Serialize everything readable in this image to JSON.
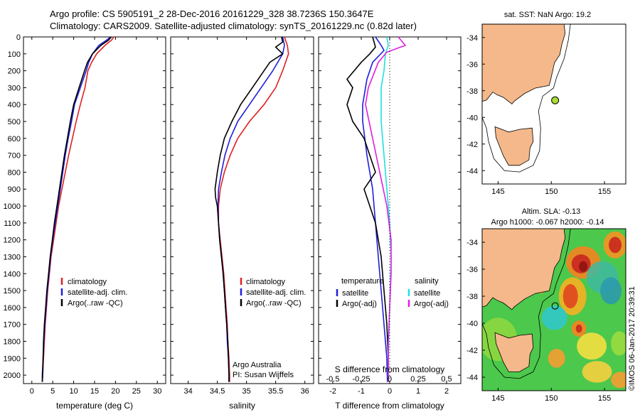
{
  "header": {
    "title1": "Argo profile: CS 5905191_2 28-Dec-2016 20161229_328 38.7236S 150.3647E",
    "title2": "Climatology: CARS2009. Satellite-adjusted climatology: synTS_20161229.nc (0.82d later)"
  },
  "depth_ticks": [
    "0",
    "100",
    "200",
    "300",
    "400",
    "500",
    "600",
    "700",
    "800",
    "900",
    "1000",
    "1100",
    "1200",
    "1300",
    "1400",
    "1500",
    "1600",
    "1700",
    "1800",
    "1900",
    "2000"
  ],
  "colors": {
    "climatology": "#e02020",
    "satellite": "#1f1fdc",
    "argo": "#000000",
    "sat_sal": "#20e0e0",
    "argo_sal": "#e020e0",
    "land": "#f4b88a"
  },
  "chart_data": [
    {
      "type": "line",
      "name": "temperature",
      "xlabel": "temperature (deg C)",
      "xlim": [
        -2,
        32
      ],
      "xticks": [
        "0",
        "5",
        "10",
        "15",
        "20",
        "25",
        "30"
      ],
      "ylim": [
        2050,
        0
      ],
      "legend": [
        "climatology",
        "satellite-adj. clim.",
        "Argo(..raw -QC)"
      ],
      "series": [
        {
          "name": "climatology",
          "color": "#e02020",
          "points": [
            [
              19.6,
              0
            ],
            [
              19.0,
              20
            ],
            [
              17.5,
              50
            ],
            [
              15.5,
              100
            ],
            [
              14.3,
              150
            ],
            [
              13.4,
              200
            ],
            [
              12.7,
              300
            ],
            [
              11.6,
              400
            ],
            [
              10.6,
              500
            ],
            [
              9.7,
              600
            ],
            [
              8.8,
              700
            ],
            [
              8.0,
              800
            ],
            [
              7.2,
              900
            ],
            [
              6.4,
              1000
            ],
            [
              5.8,
              1100
            ],
            [
              5.2,
              1200
            ],
            [
              4.6,
              1300
            ],
            [
              4.2,
              1400
            ],
            [
              3.8,
              1500
            ],
            [
              3.5,
              1600
            ],
            [
              3.2,
              1700
            ],
            [
              3.0,
              1800
            ],
            [
              2.8,
              1900
            ],
            [
              2.6,
              2000
            ],
            [
              2.5,
              2040
            ]
          ]
        },
        {
          "name": "satellite-adj. clim.",
          "color": "#1f1fdc",
          "points": [
            [
              18.8,
              0
            ],
            [
              17.8,
              20
            ],
            [
              16.0,
              50
            ],
            [
              14.5,
              100
            ],
            [
              13.6,
              150
            ],
            [
              13.0,
              200
            ],
            [
              11.6,
              300
            ],
            [
              10.2,
              400
            ],
            [
              9.5,
              500
            ],
            [
              8.7,
              600
            ],
            [
              8.0,
              700
            ],
            [
              7.4,
              800
            ],
            [
              6.8,
              900
            ],
            [
              6.2,
              1000
            ],
            [
              5.6,
              1100
            ],
            [
              5.0,
              1200
            ],
            [
              4.5,
              1300
            ],
            [
              4.1,
              1400
            ],
            [
              3.7,
              1500
            ],
            [
              3.4,
              1600
            ],
            [
              3.1,
              1700
            ],
            [
              2.9,
              1800
            ],
            [
              2.7,
              1900
            ],
            [
              2.6,
              2000
            ],
            [
              2.5,
              2040
            ]
          ]
        },
        {
          "name": "Argo(..raw -QC)",
          "color": "#000000",
          "points": [
            [
              19.0,
              0
            ],
            [
              18.3,
              20
            ],
            [
              16.5,
              50
            ],
            [
              14.5,
              100
            ],
            [
              13.3,
              150
            ],
            [
              12.6,
              200
            ],
            [
              11.3,
              300
            ],
            [
              10.0,
              400
            ],
            [
              9.2,
              500
            ],
            [
              8.5,
              600
            ],
            [
              7.8,
              700
            ],
            [
              7.2,
              800
            ],
            [
              6.6,
              900
            ],
            [
              6.0,
              1000
            ],
            [
              5.4,
              1100
            ],
            [
              4.9,
              1200
            ],
            [
              4.4,
              1300
            ],
            [
              4.0,
              1400
            ],
            [
              3.6,
              1500
            ],
            [
              3.3,
              1600
            ],
            [
              3.0,
              1700
            ],
            [
              2.8,
              1800
            ],
            [
              2.7,
              1900
            ],
            [
              2.5,
              2000
            ],
            [
              2.5,
              2040
            ]
          ]
        }
      ]
    },
    {
      "type": "line",
      "name": "salinity",
      "xlabel": "salinity",
      "xlim": [
        33.7,
        36.15
      ],
      "xticks": [
        "34",
        "34.5",
        "35",
        "35.5",
        "36"
      ],
      "ylim": [
        2050,
        0
      ],
      "legend": [
        "climatology",
        "satellite-adj. clim.",
        "Argo(..raw -QC)"
      ],
      "annotation": [
        "Argo Australia",
        "PI: Susan Wijffels"
      ],
      "series": [
        {
          "name": "climatology",
          "color": "#e02020",
          "points": [
            [
              35.65,
              0
            ],
            [
              35.7,
              50
            ],
            [
              35.72,
              100
            ],
            [
              35.62,
              200
            ],
            [
              35.5,
              300
            ],
            [
              35.3,
              400
            ],
            [
              35.05,
              500
            ],
            [
              34.85,
              600
            ],
            [
              34.72,
              700
            ],
            [
              34.62,
              800
            ],
            [
              34.55,
              900
            ],
            [
              34.52,
              1000
            ],
            [
              34.52,
              1100
            ],
            [
              34.55,
              1200
            ],
            [
              34.58,
              1300
            ],
            [
              34.61,
              1400
            ],
            [
              34.63,
              1500
            ],
            [
              34.65,
              1600
            ],
            [
              34.67,
              1700
            ],
            [
              34.68,
              1800
            ],
            [
              34.7,
              1900
            ],
            [
              34.71,
              2000
            ],
            [
              34.71,
              2040
            ]
          ]
        },
        {
          "name": "satellite-adj. clim.",
          "color": "#1f1fdc",
          "points": [
            [
              35.62,
              0
            ],
            [
              35.65,
              50
            ],
            [
              35.62,
              100
            ],
            [
              35.45,
              200
            ],
            [
              35.25,
              300
            ],
            [
              35.05,
              400
            ],
            [
              34.85,
              500
            ],
            [
              34.72,
              600
            ],
            [
              34.63,
              700
            ],
            [
              34.57,
              800
            ],
            [
              34.52,
              900
            ],
            [
              34.51,
              1000
            ],
            [
              34.52,
              1100
            ],
            [
              34.54,
              1200
            ],
            [
              34.57,
              1300
            ],
            [
              34.6,
              1400
            ],
            [
              34.62,
              1500
            ],
            [
              34.64,
              1600
            ],
            [
              34.66,
              1700
            ],
            [
              34.67,
              1800
            ],
            [
              34.69,
              1900
            ],
            [
              34.7,
              2000
            ],
            [
              34.7,
              2040
            ]
          ]
        },
        {
          "name": "Argo(..raw -QC)",
          "color": "#000000",
          "points": [
            [
              35.6,
              0
            ],
            [
              35.62,
              30
            ],
            [
              35.5,
              60
            ],
            [
              35.62,
              100
            ],
            [
              35.4,
              150
            ],
            [
              35.3,
              200
            ],
            [
              35.1,
              300
            ],
            [
              34.9,
              400
            ],
            [
              34.75,
              500
            ],
            [
              34.62,
              600
            ],
            [
              34.55,
              700
            ],
            [
              34.5,
              800
            ],
            [
              34.46,
              900
            ],
            [
              34.47,
              950
            ],
            [
              34.5,
              1000
            ],
            [
              34.52,
              1100
            ],
            [
              34.54,
              1200
            ],
            [
              34.57,
              1300
            ],
            [
              34.6,
              1400
            ],
            [
              34.62,
              1500
            ],
            [
              34.64,
              1600
            ],
            [
              34.66,
              1700
            ],
            [
              34.68,
              1800
            ],
            [
              34.69,
              1900
            ],
            [
              34.7,
              2000
            ],
            [
              34.7,
              2040
            ]
          ]
        }
      ]
    },
    {
      "type": "line",
      "name": "differences",
      "xlabel": "T difference from climatology",
      "xlabel_top": "S difference from climatology",
      "xlim": [
        -2.5,
        2.5
      ],
      "xticks": [
        "-2",
        "-1",
        "0",
        "1",
        "2"
      ],
      "xticks_top": [
        "-0.5",
        "-0.25",
        "0",
        "0.25",
        "0.5"
      ],
      "ylim": [
        2050,
        0
      ],
      "legend_left": [
        "temperature",
        "satellite",
        "Argo(-adj)"
      ],
      "legend_right": [
        "salinity",
        "satellite",
        "Argo(-adj)"
      ],
      "series": [
        {
          "name": "temperature satellite",
          "color": "#1f1fdc",
          "points": [
            [
              -0.5,
              0
            ],
            [
              -0.3,
              50
            ],
            [
              -0.2,
              80
            ],
            [
              -0.6,
              150
            ],
            [
              -0.8,
              250
            ],
            [
              -0.95,
              400
            ],
            [
              -0.95,
              500
            ],
            [
              -0.8,
              700
            ],
            [
              -0.6,
              900
            ],
            [
              -0.5,
              1100
            ],
            [
              -0.4,
              1300
            ],
            [
              -0.3,
              1500
            ],
            [
              -0.2,
              1700
            ],
            [
              -0.1,
              1900
            ],
            [
              -0.08,
              2040
            ]
          ]
        },
        {
          "name": "temperature Argo(-adj)",
          "color": "#000000",
          "points": [
            [
              -0.6,
              0
            ],
            [
              -0.5,
              60
            ],
            [
              -0.7,
              100
            ],
            [
              -1.0,
              150
            ],
            [
              -1.5,
              250
            ],
            [
              -1.3,
              300
            ],
            [
              -1.5,
              400
            ],
            [
              -1.3,
              500
            ],
            [
              -0.9,
              600
            ],
            [
              -0.7,
              700
            ],
            [
              -0.5,
              800
            ],
            [
              -0.9,
              900
            ],
            [
              -0.7,
              1000
            ],
            [
              -0.5,
              1100
            ],
            [
              -0.3,
              1300
            ],
            [
              -0.2,
              1500
            ],
            [
              -0.1,
              1700
            ],
            [
              -0.05,
              1900
            ],
            [
              -0.05,
              2040
            ]
          ]
        },
        {
          "name": "salinity satellite",
          "color": "#20e0e0",
          "points": [
            [
              -0.1,
              0
            ],
            [
              -0.05,
              50
            ],
            [
              -0.15,
              100
            ],
            [
              -0.2,
              200
            ],
            [
              -0.3,
              300
            ],
            [
              -0.3,
              500
            ],
            [
              -0.2,
              700
            ],
            [
              -0.1,
              900
            ],
            [
              0.0,
              1100
            ],
            [
              0.05,
              1300
            ],
            [
              0.02,
              1500
            ],
            [
              -0.02,
              1700
            ],
            [
              -0.05,
              1900
            ],
            [
              -0.05,
              2040
            ]
          ]
        },
        {
          "name": "salinity Argo(-adj)",
          "color": "#e020e0",
          "points": [
            [
              0.3,
              0
            ],
            [
              0.55,
              50
            ],
            [
              -0.1,
              90
            ],
            [
              -0.4,
              150
            ],
            [
              -0.75,
              300
            ],
            [
              -0.85,
              400
            ],
            [
              -0.6,
              600
            ],
            [
              -0.35,
              800
            ],
            [
              -0.1,
              1000
            ],
            [
              0.05,
              1200
            ],
            [
              0.05,
              1400
            ],
            [
              0.0,
              1600
            ],
            [
              -0.05,
              1800
            ],
            [
              -0.05,
              2040
            ]
          ]
        }
      ]
    },
    {
      "type": "scatter",
      "name": "sst-map",
      "title": "sat. SST: NaN Argo: 19.2",
      "xlim": [
        143.5,
        157
      ],
      "ylim": [
        -45,
        -33
      ],
      "xticks": [
        "145",
        "150",
        "155"
      ],
      "yticks": [
        "-34",
        "-36",
        "-38",
        "-40",
        "-42",
        "-44"
      ],
      "points": [
        {
          "lon": 150.36,
          "lat": -38.72,
          "color": "#aadd33"
        }
      ]
    },
    {
      "type": "heatmap",
      "name": "sla-map",
      "title": "Altim. SLA: -0.13",
      "subtitle": "Argo h1000: -0.067 h2000: -0.14",
      "xlim": [
        143.5,
        157
      ],
      "ylim": [
        -45,
        -33
      ],
      "xticks": [
        "145",
        "150",
        "155"
      ],
      "yticks": [
        "-34",
        "-36",
        "-38",
        "-40",
        "-42",
        "-44"
      ],
      "points": [
        {
          "lon": 150.36,
          "lat": -38.72
        }
      ]
    }
  ],
  "footer_stamp": "©IMOS 06-Jan-2017 20:39:31"
}
